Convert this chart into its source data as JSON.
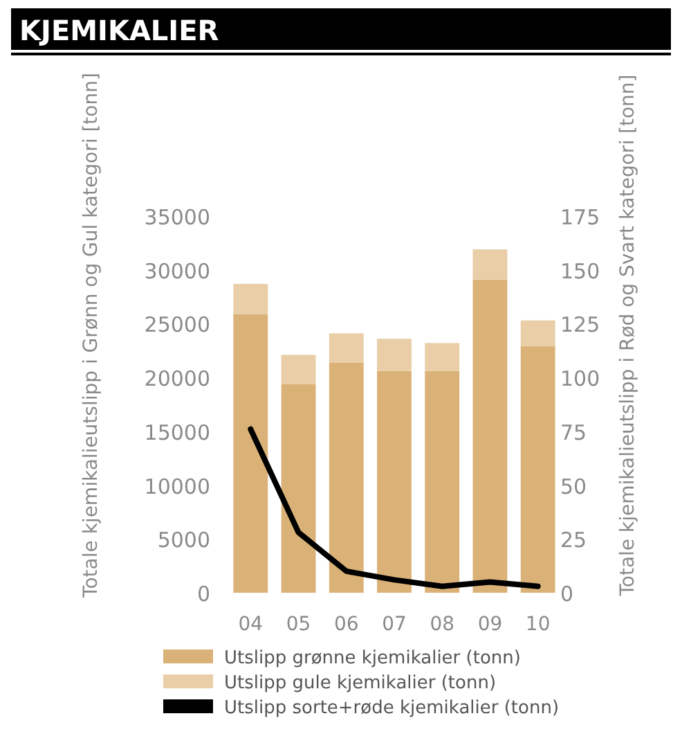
{
  "chart_data": {
    "type": "bar",
    "title": "KJEMIKALIER",
    "ylabel": "Totale kjemikalieutslipp i Grønn og Gul kategori [tonn]",
    "y2label": "Totale kjemikalieutslipp i Rød og Svart kategori [tonn]",
    "categories": [
      "04",
      "05",
      "06",
      "07",
      "08",
      "09",
      "10"
    ],
    "stacked": true,
    "series": [
      {
        "name": "Utslipp grønne kjemikalier (tonn)",
        "color": "#dab277",
        "values": [
          25900,
          19400,
          21400,
          20600,
          20600,
          29100,
          22900
        ]
      },
      {
        "name": "Utslipp gule kjemikalier (tonn)",
        "color": "#e9cea8",
        "values": [
          2800,
          2700,
          2700,
          3000,
          2600,
          2800,
          2400
        ]
      },
      {
        "name": "Utslipp sorte+røde kjemikalier (tonn)",
        "type": "line",
        "axis": "y2",
        "color": "#000000",
        "values": [
          76,
          28,
          10,
          6,
          3,
          5,
          3
        ]
      }
    ],
    "ylim": [
      0,
      35000
    ],
    "yticks": [
      0,
      5000,
      10000,
      15000,
      20000,
      25000,
      30000,
      35000
    ],
    "y2lim": [
      0,
      175
    ],
    "y2ticks": [
      0,
      25,
      50,
      75,
      100,
      125,
      150,
      175
    ],
    "legend": "bottom",
    "grid": false
  }
}
